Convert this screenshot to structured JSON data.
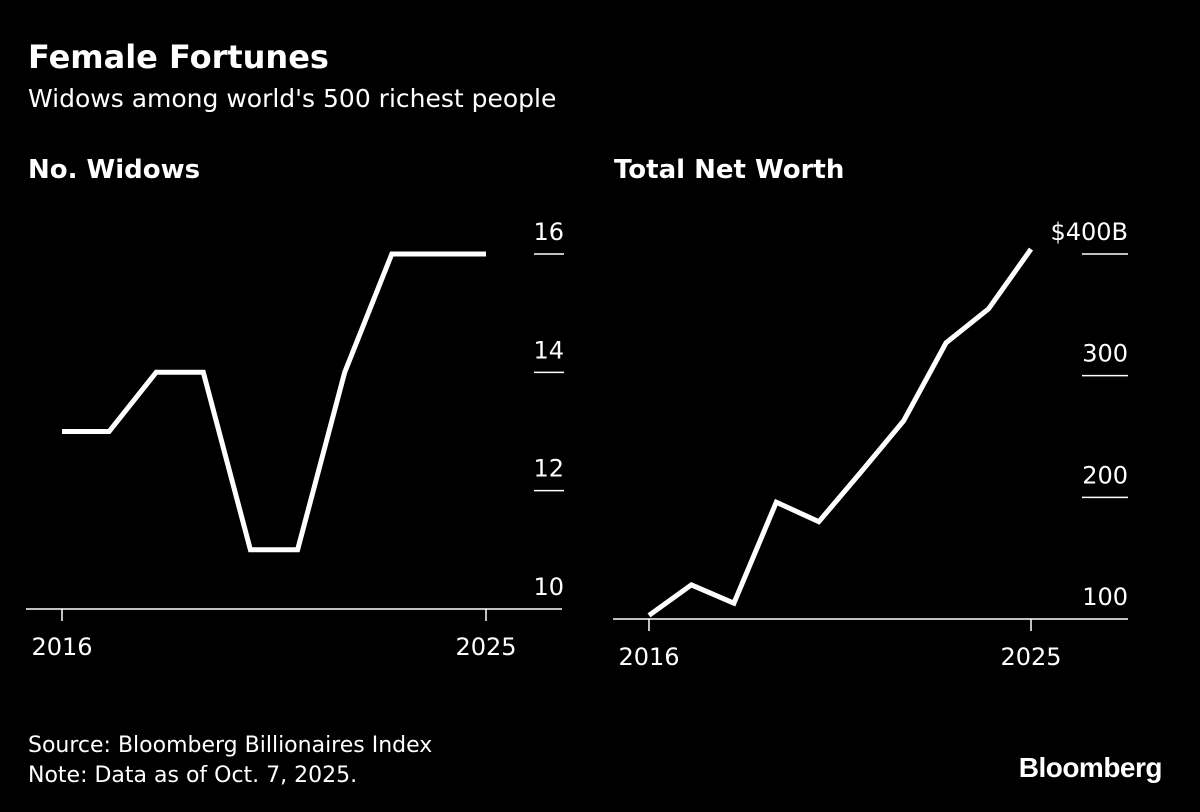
{
  "header": {
    "title": "Female Fortunes",
    "subtitle": "Widows among world's 500 richest people"
  },
  "chart_data": [
    {
      "type": "line",
      "title": "No. Widows",
      "x": [
        2016,
        2017,
        2018,
        2019,
        2020,
        2021,
        2022,
        2023,
        2024,
        2025
      ],
      "values": [
        13,
        13,
        14,
        14,
        11,
        11,
        14,
        16,
        16,
        16
      ],
      "xlim": [
        2016,
        2025
      ],
      "ylim": [
        10,
        16
      ],
      "x_ticks": [
        2016,
        2025
      ],
      "x_tick_labels": [
        "2016",
        "2025"
      ],
      "y_ticks": [
        10,
        12,
        14,
        16
      ],
      "y_tick_labels": [
        "10",
        "12",
        "14",
        "16"
      ],
      "xlabel": "",
      "ylabel": "",
      "axis_side": "right"
    },
    {
      "type": "line",
      "title": "Total Net Worth",
      "x": [
        2016,
        2017,
        2018,
        2019,
        2020,
        2021,
        2022,
        2023,
        2024,
        2025
      ],
      "values": [
        103,
        128,
        113,
        196,
        180,
        221,
        263,
        327,
        355,
        404
      ],
      "xlim": [
        2016,
        2025
      ],
      "ylim": [
        100,
        400
      ],
      "x_ticks": [
        2016,
        2025
      ],
      "x_tick_labels": [
        "2016",
        "2025"
      ],
      "y_ticks": [
        100,
        200,
        300,
        400
      ],
      "y_tick_labels": [
        "100",
        "200",
        "300",
        "$400B"
      ],
      "xlabel": "",
      "ylabel": "",
      "axis_side": "right"
    }
  ],
  "colors": {
    "background": "#000000",
    "line": "#ffffff",
    "text": "#ffffff"
  },
  "footer": {
    "source": "Source: Bloomberg Billionaires Index",
    "note": "Note: Data as of Oct. 7, 2025.",
    "brand": "Bloomberg"
  }
}
